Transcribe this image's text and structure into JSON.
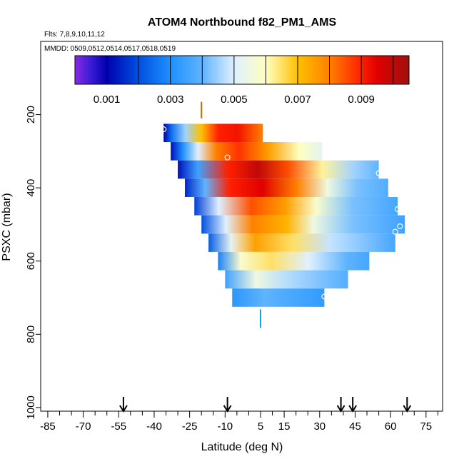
{
  "chart_data": {
    "type": "heatmap",
    "title": "ATOM4 Northbound f82_PM1_AMS",
    "flights_note": "Flts: 7,8,9,10,11,12",
    "dates_note": "MMDD: 0509,0512,0514,0517,0518,0519",
    "xlabel": "Latitude (deg N)",
    "ylabel": "PSXC (mbar)",
    "xlim": [
      -88,
      82
    ],
    "ylim": [
      1010,
      0
    ],
    "x_ticks": [
      "-85",
      "-70",
      "-55",
      "-40",
      "-25",
      "-10",
      "5",
      "15",
      "30",
      "45",
      "60",
      "75"
    ],
    "x_tick_values": [
      -85,
      -70,
      -55,
      -40,
      -25,
      -10,
      5,
      15,
      30,
      45,
      60,
      75
    ],
    "y_ticks": [
      "200",
      "400",
      "600",
      "800",
      "1000"
    ],
    "y_tick_values": [
      200,
      400,
      600,
      800,
      1000
    ],
    "colorbar": {
      "min": 0.0,
      "max": 0.0105,
      "labels": [
        "0.001",
        "0.003",
        "0.005",
        "0.007",
        "0.009"
      ],
      "label_values": [
        0.001,
        0.003,
        0.005,
        0.007,
        0.009
      ],
      "divisions": [
        0.001,
        0.002,
        0.003,
        0.004,
        0.005,
        0.006,
        0.007,
        0.008,
        0.009,
        0.01
      ],
      "stops": [
        {
          "v": 0.0,
          "c": "#8a2be2"
        },
        {
          "v": 0.0005,
          "c": "#3a1bd6"
        },
        {
          "v": 0.001,
          "c": "#0000b0"
        },
        {
          "v": 0.002,
          "c": "#0050e0"
        },
        {
          "v": 0.003,
          "c": "#1e90ff"
        },
        {
          "v": 0.004,
          "c": "#5fb4ff"
        },
        {
          "v": 0.005,
          "c": "#dff0ff"
        },
        {
          "v": 0.006,
          "c": "#ffffc0"
        },
        {
          "v": 0.0065,
          "c": "#ffe066"
        },
        {
          "v": 0.007,
          "c": "#ffc000"
        },
        {
          "v": 0.008,
          "c": "#ff8000"
        },
        {
          "v": 0.009,
          "c": "#ff2000"
        },
        {
          "v": 0.0095,
          "c": "#e00000"
        },
        {
          "v": 0.0105,
          "c": "#a01010"
        }
      ]
    },
    "rows": [
      {
        "p": 250,
        "lat_start": -36,
        "lat_end": 6,
        "profile": [
          [
            0,
            0.001
          ],
          [
            0.08,
            0.0025
          ],
          [
            0.22,
            0.0045
          ],
          [
            0.38,
            0.007
          ],
          [
            0.55,
            0.009
          ],
          [
            0.75,
            0.0092
          ],
          [
            1,
            0.008
          ]
        ]
      },
      {
        "p": 300,
        "lat_start": -33,
        "lat_end": 31,
        "profile": [
          [
            0,
            0.0012
          ],
          [
            0.08,
            0.003
          ],
          [
            0.18,
            0.005
          ],
          [
            0.3,
            0.008
          ],
          [
            0.45,
            0.0088
          ],
          [
            0.65,
            0.0075
          ],
          [
            0.85,
            0.006
          ],
          [
            1,
            0.0052
          ]
        ]
      },
      {
        "p": 350,
        "lat_start": -30,
        "lat_end": 55,
        "profile": [
          [
            0,
            0.0012
          ],
          [
            0.1,
            0.0035
          ],
          [
            0.25,
            0.009
          ],
          [
            0.4,
            0.01
          ],
          [
            0.55,
            0.0085
          ],
          [
            0.72,
            0.0062
          ],
          [
            0.88,
            0.0045
          ],
          [
            1,
            0.004
          ]
        ]
      },
      {
        "p": 400,
        "lat_start": -27,
        "lat_end": 59,
        "profile": [
          [
            0,
            0.0015
          ],
          [
            0.1,
            0.004
          ],
          [
            0.22,
            0.009
          ],
          [
            0.38,
            0.0095
          ],
          [
            0.55,
            0.008
          ],
          [
            0.7,
            0.0055
          ],
          [
            0.85,
            0.0042
          ],
          [
            1,
            0.0038
          ]
        ]
      },
      {
        "p": 450,
        "lat_start": -23,
        "lat_end": 63,
        "profile": [
          [
            0,
            0.0018
          ],
          [
            0.12,
            0.005
          ],
          [
            0.28,
            0.0085
          ],
          [
            0.45,
            0.0075
          ],
          [
            0.6,
            0.0058
          ],
          [
            0.78,
            0.0042
          ],
          [
            1,
            0.0036
          ]
        ]
      },
      {
        "p": 500,
        "lat_start": -20,
        "lat_end": 66,
        "profile": [
          [
            0,
            0.002
          ],
          [
            0.12,
            0.005
          ],
          [
            0.25,
            0.008
          ],
          [
            0.42,
            0.0072
          ],
          [
            0.55,
            0.0055
          ],
          [
            0.75,
            0.0042
          ],
          [
            1,
            0.0035
          ]
        ]
      },
      {
        "p": 550,
        "lat_start": -17,
        "lat_end": 62,
        "profile": [
          [
            0,
            0.0022
          ],
          [
            0.12,
            0.0052
          ],
          [
            0.25,
            0.0075
          ],
          [
            0.45,
            0.0065
          ],
          [
            0.65,
            0.0048
          ],
          [
            1,
            0.0036
          ]
        ]
      },
      {
        "p": 600,
        "lat_start": -13,
        "lat_end": 51,
        "profile": [
          [
            0,
            0.0028
          ],
          [
            0.15,
            0.0058
          ],
          [
            0.35,
            0.0065
          ],
          [
            0.6,
            0.005
          ],
          [
            0.85,
            0.004
          ],
          [
            1,
            0.0036
          ]
        ]
      },
      {
        "p": 650,
        "lat_start": -10,
        "lat_end": 42,
        "profile": [
          [
            0,
            0.0035
          ],
          [
            0.25,
            0.0055
          ],
          [
            0.55,
            0.0046
          ],
          [
            1,
            0.0038
          ]
        ]
      },
      {
        "p": 700,
        "lat_start": -7,
        "lat_end": 32,
        "profile": [
          [
            0,
            0.0032
          ],
          [
            0.35,
            0.004
          ],
          [
            0.7,
            0.0036
          ],
          [
            1,
            0.0033
          ]
        ]
      }
    ],
    "circle_markers": [
      {
        "lat": -36,
        "p": 240
      },
      {
        "lat": -9,
        "p": 317
      },
      {
        "lat": 55,
        "p": 360
      },
      {
        "lat": 63,
        "p": 458
      },
      {
        "lat": 64,
        "p": 505
      },
      {
        "lat": 62,
        "p": 520
      },
      {
        "lat": 32,
        "p": 697
      }
    ],
    "top_marker": {
      "lat": -20,
      "p_from": 165,
      "p_to": 210,
      "color": "#cc6600"
    },
    "bottom_marker": {
      "lat": 5,
      "p_from": 732,
      "p_to": 782,
      "color": "#1aa0e0"
    },
    "arrow_latitudes": [
      -53,
      -9,
      39,
      44,
      67
    ]
  }
}
